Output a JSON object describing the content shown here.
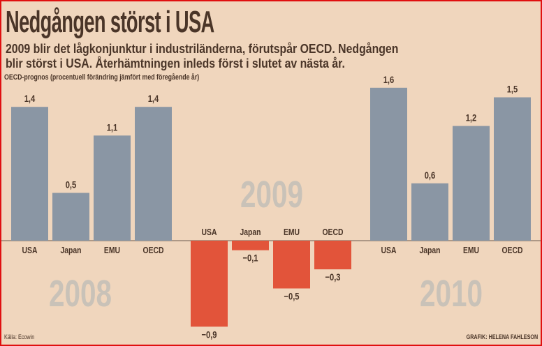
{
  "chart_data": {
    "type": "bar",
    "title": "Nedgången störst i USA",
    "subtitle": "2009 blir det lågkonjunktur i industriländerna, förutspår OECD. Nedgången blir störst i USA. Återhämtningen inleds först i slutet av nästa år.",
    "subtitle_lines": [
      "2009 blir det lågkonjunktur i industriländerna, förutspår OECD. Nedgången",
      "blir störst i USA. Återhämtningen inleds först i slutet av nästa år."
    ],
    "ylabel": "OECD-prognos (procentuell förändring jämfört med föregående år)",
    "categories": [
      "USA",
      "Japan",
      "EMU",
      "OECD"
    ],
    "groups": [
      {
        "year": "2008",
        "values": [
          1.4,
          0.5,
          1.1,
          1.4
        ],
        "labels": [
          "1,4",
          "0,5",
          "1,1",
          "1,4"
        ]
      },
      {
        "year": "2009",
        "values": [
          -0.9,
          -0.1,
          -0.5,
          -0.3
        ],
        "labels": [
          "−0,9",
          "−0,1",
          "−0,5",
          "−0,3"
        ]
      },
      {
        "year": "2010",
        "values": [
          1.6,
          0.6,
          1.2,
          1.5
        ],
        "labels": [
          "1,6",
          "0,6",
          "1,2",
          "1,5"
        ]
      }
    ],
    "grid": false,
    "colors": {
      "positive": "#8a96a4",
      "negative": "#e2543a",
      "year_label": "#c9c2b8",
      "text": "#4a3528",
      "background": "#f0d6bd"
    }
  },
  "footer": {
    "source": "Källa: Ecowin",
    "credit": "GRAFIK: HELENA FAHLESON"
  }
}
